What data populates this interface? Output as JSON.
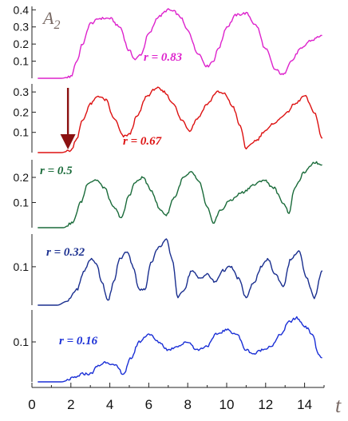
{
  "chart_data": {
    "type": "line",
    "xlabel": "t",
    "ylabel": "A2",
    "ylabel_main": "A",
    "ylabel_sub": "2",
    "xlim": [
      0,
      15
    ],
    "x_ticks": [
      "0",
      "2",
      "4",
      "6",
      "8",
      "10",
      "12",
      "14"
    ],
    "x_tick_values": [
      0,
      2,
      4,
      6,
      8,
      10,
      12,
      14
    ],
    "grid": false,
    "legend": "none",
    "annotation": {
      "type": "arrow",
      "panel": 1,
      "x": 1.85,
      "y_from": 0.32,
      "y_to": 0.03,
      "color": "#8b1111"
    },
    "panels": [
      {
        "label": "r = 0.83",
        "color": "#dd22cc",
        "ylim": [
          0.0,
          0.42
        ],
        "y_ticks": [
          "0.1",
          "0.2",
          "0.3",
          "0.4"
        ],
        "y_tick_values": [
          0.1,
          0.2,
          0.3,
          0.4
        ],
        "x": [
          0.3,
          1.5,
          2.0,
          2.3,
          2.6,
          3.0,
          3.5,
          4.0,
          4.5,
          5.0,
          5.3,
          5.6,
          6.0,
          6.5,
          7.0,
          7.3,
          7.6,
          8.0,
          8.5,
          9.0,
          9.3,
          9.6,
          10.0,
          10.5,
          11.0,
          11.5,
          12.0,
          12.5,
          12.9,
          13.3,
          13.8,
          14.3,
          14.9
        ],
        "values": [
          0.0,
          0.0,
          0.01,
          0.1,
          0.2,
          0.32,
          0.35,
          0.35,
          0.3,
          0.16,
          0.11,
          0.14,
          0.26,
          0.36,
          0.4,
          0.39,
          0.36,
          0.28,
          0.15,
          0.07,
          0.1,
          0.18,
          0.3,
          0.37,
          0.38,
          0.31,
          0.17,
          0.05,
          0.02,
          0.1,
          0.17,
          0.22,
          0.25
        ]
      },
      {
        "label": "r = 0.67",
        "color": "#dd1111",
        "ylim": [
          0.0,
          0.34
        ],
        "y_ticks": [
          "0.1",
          "0.2",
          "0.3"
        ],
        "y_tick_values": [
          0.1,
          0.2,
          0.3
        ],
        "x": [
          0.3,
          1.5,
          2.0,
          2.3,
          2.6,
          3.0,
          3.4,
          3.8,
          4.2,
          4.7,
          5.0,
          5.4,
          5.9,
          6.4,
          6.8,
          7.2,
          7.7,
          8.1,
          8.5,
          9.0,
          9.5,
          9.9,
          10.3,
          10.7,
          11.0,
          11.5,
          12.0,
          12.5,
          13.0,
          13.5,
          14.0,
          14.5,
          14.9
        ],
        "values": [
          0.0,
          0.0,
          0.01,
          0.07,
          0.16,
          0.24,
          0.28,
          0.26,
          0.17,
          0.08,
          0.09,
          0.18,
          0.28,
          0.32,
          0.3,
          0.25,
          0.16,
          0.11,
          0.17,
          0.24,
          0.3,
          0.29,
          0.23,
          0.13,
          0.02,
          0.06,
          0.11,
          0.15,
          0.19,
          0.24,
          0.28,
          0.2,
          0.07
        ]
      },
      {
        "label": "r = 0.5",
        "color": "#1a6b3a",
        "ylim": [
          0.0,
          0.27
        ],
        "y_ticks": [
          "0.1",
          "0.2"
        ],
        "y_tick_values": [
          0.1,
          0.2
        ],
        "x": [
          0.3,
          1.6,
          2.1,
          2.5,
          2.9,
          3.3,
          3.7,
          4.2,
          4.6,
          5.0,
          5.3,
          5.7,
          6.1,
          6.6,
          6.9,
          7.3,
          7.8,
          8.2,
          8.6,
          9.0,
          9.3,
          9.7,
          10.2,
          10.8,
          11.4,
          11.9,
          12.4,
          12.9,
          13.2,
          13.5,
          14.0,
          14.5,
          14.9
        ],
        "values": [
          0.0,
          0.0,
          0.02,
          0.1,
          0.18,
          0.19,
          0.16,
          0.08,
          0.04,
          0.13,
          0.18,
          0.2,
          0.15,
          0.07,
          0.05,
          0.12,
          0.2,
          0.22,
          0.18,
          0.08,
          0.02,
          0.07,
          0.11,
          0.14,
          0.17,
          0.19,
          0.16,
          0.1,
          0.06,
          0.16,
          0.22,
          0.26,
          0.25
        ]
      },
      {
        "label": "r = 0.32",
        "color": "#1a2f8f",
        "ylim": [
          0.0,
          0.185
        ],
        "y_ticks": [
          "0.1"
        ],
        "y_tick_values": [
          0.1
        ],
        "x": [
          0.3,
          1.3,
          1.8,
          2.3,
          2.7,
          3.0,
          3.3,
          3.6,
          3.9,
          4.2,
          4.5,
          4.9,
          5.2,
          5.5,
          5.8,
          6.1,
          6.5,
          6.9,
          7.2,
          7.5,
          7.8,
          8.2,
          8.6,
          9.0,
          9.4,
          9.8,
          10.2,
          10.6,
          11.0,
          11.4,
          11.8,
          12.1,
          12.5,
          12.9,
          13.3,
          13.7,
          14.1,
          14.5,
          14.9
        ],
        "values": [
          0.0,
          0.0,
          0.01,
          0.04,
          0.09,
          0.12,
          0.11,
          0.06,
          0.01,
          0.06,
          0.12,
          0.14,
          0.1,
          0.04,
          0.04,
          0.11,
          0.15,
          0.17,
          0.12,
          0.02,
          0.04,
          0.09,
          0.07,
          0.08,
          0.06,
          0.09,
          0.1,
          0.07,
          0.02,
          0.06,
          0.1,
          0.12,
          0.08,
          0.05,
          0.12,
          0.14,
          0.07,
          0.02,
          0.09
        ]
      },
      {
        "label": "r = 0.16",
        "color": "#1a2fd6",
        "ylim": [
          0.0,
          0.18
        ],
        "y_ticks": [
          "0.1"
        ],
        "y_tick_values": [
          0.1
        ],
        "x": [
          0.3,
          1.5,
          2.2,
          2.6,
          3.0,
          3.4,
          3.8,
          4.3,
          4.7,
          5.1,
          5.5,
          6.0,
          6.5,
          7.0,
          7.5,
          8.0,
          8.5,
          9.0,
          9.5,
          10.0,
          10.5,
          11.0,
          11.4,
          11.8,
          12.3,
          12.8,
          13.2,
          13.6,
          14.0,
          14.4,
          14.7,
          14.9
        ],
        "values": [
          0.0,
          0.0,
          0.01,
          0.02,
          0.02,
          0.04,
          0.05,
          0.04,
          0.02,
          0.06,
          0.1,
          0.12,
          0.1,
          0.08,
          0.09,
          0.1,
          0.08,
          0.09,
          0.12,
          0.13,
          0.12,
          0.08,
          0.07,
          0.08,
          0.09,
          0.12,
          0.15,
          0.16,
          0.14,
          0.12,
          0.07,
          0.06
        ]
      }
    ]
  }
}
